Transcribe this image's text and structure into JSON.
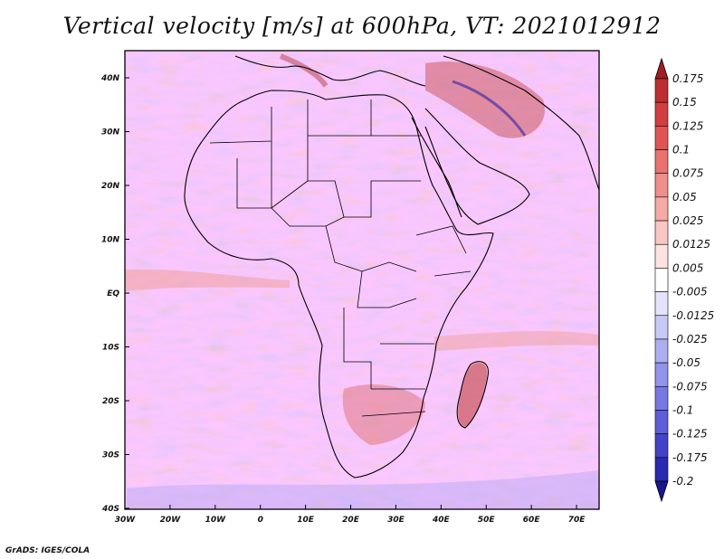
{
  "title": "Vertical velocity [m/s] at 600hPa, VT: 2021012912",
  "credit": "GrADS: IGES/COLA",
  "map": {
    "lat_labels": [
      "40N",
      "30N",
      "20N",
      "10N",
      "EQ",
      "10S",
      "20S",
      "30S",
      "40S"
    ],
    "lon_labels": [
      "30W",
      "20W",
      "10W",
      "0",
      "10E",
      "20E",
      "30E",
      "40E",
      "50E",
      "60E",
      "70E"
    ]
  },
  "colorbar": {
    "labels": [
      "0.175",
      "0.15",
      "0.125",
      "0.1",
      "0.075",
      "0.05",
      "0.025",
      "0.0125",
      "0.005",
      "-0.005",
      "-0.0125",
      "-0.025",
      "-0.05",
      "-0.075",
      "-0.1",
      "-0.125",
      "-0.175",
      "-0.2"
    ],
    "colors": [
      "#a11e24",
      "#bd2d31",
      "#d23d3f",
      "#e05554",
      "#e9726e",
      "#f08e89",
      "#f5aaa5",
      "#f9c7c3",
      "#fce3e1",
      "#ffffff",
      "#e3e3fb",
      "#c8c8f6",
      "#adaef1",
      "#9293ea",
      "#7778e2",
      "#5d5ed8",
      "#4243c8",
      "#2a29b1",
      "#1a168e"
    ]
  }
}
